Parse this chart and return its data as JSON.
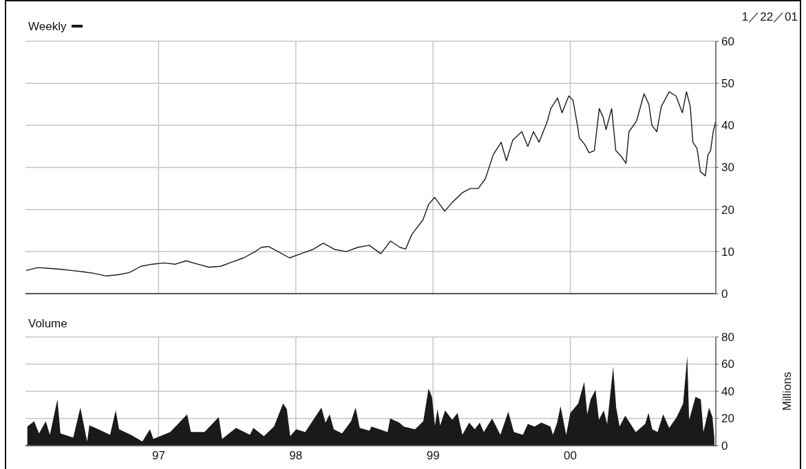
{
  "chart_data": [
    {
      "type": "line",
      "legend": "top left",
      "annotations": [
        "1／22／01"
      ],
      "grid": true,
      "tick_labels": "y",
      "xlim": [
        "1996-01-13",
        "2001-01-22"
      ],
      "xticks": [
        {
          "value": "1997-01-01",
          "label": null
        },
        {
          "value": "1998-01-01",
          "label": null
        },
        {
          "value": "1999-01-01",
          "label": null
        },
        {
          "value": "2000-01-01",
          "label": null
        }
      ],
      "ylim": [
        0,
        60
      ],
      "yticks": [
        0,
        10,
        20,
        30,
        40,
        50,
        60
      ],
      "series": [
        {
          "name": "Weekly",
          "color": "#1a1a1a",
          "x": [
            "1996-01-15",
            "1996-02-15",
            "1996-03-15",
            "1996-04-15",
            "1996-05-15",
            "1996-06-15",
            "1996-07-15",
            "1996-08-15",
            "1996-09-15",
            "1996-10-15",
            "1996-11-15",
            "1996-12-15",
            "1997-01-15",
            "1997-02-15",
            "1997-03-15",
            "1997-04-15",
            "1997-05-15",
            "1997-06-15",
            "1997-07-15",
            "1997-08-15",
            "1997-09-15",
            "1997-10-01",
            "1997-10-20",
            "1997-11-15",
            "1997-12-15",
            "1998-01-15",
            "1998-02-15",
            "1998-03-15",
            "1998-04-15",
            "1998-05-15",
            "1998-06-15",
            "1998-07-15",
            "1998-08-15",
            "1998-09-10",
            "1998-10-05",
            "1998-10-20",
            "1998-11-05",
            "1998-11-20",
            "1998-12-05",
            "1998-12-20",
            "1999-01-05",
            "1999-02-01",
            "1999-02-20",
            "1999-03-20",
            "1999-04-10",
            "1999-05-01",
            "1999-05-20",
            "1999-06-10",
            "1999-07-01",
            "1999-07-15",
            "1999-08-01",
            "1999-08-25",
            "1999-09-10",
            "1999-09-25",
            "1999-10-10",
            "1999-11-01",
            "1999-11-10",
            "1999-11-28",
            "1999-12-10",
            "1999-12-28",
            "2000-01-08",
            "2000-01-20",
            "2000-01-25",
            "2000-02-08",
            "2000-02-20",
            "2000-03-05",
            "2000-03-18",
            "2000-03-28",
            "2000-04-05",
            "2000-04-20",
            "2000-05-01",
            "2000-05-15",
            "2000-05-28",
            "2000-06-05",
            "2000-06-25",
            "2000-07-15",
            "2000-07-28",
            "2000-08-05",
            "2000-08-18",
            "2000-08-30",
            "2000-09-20",
            "2000-10-08",
            "2000-10-25",
            "2000-11-05",
            "2000-11-15",
            "2000-11-22",
            "2000-12-03",
            "2000-12-12",
            "2000-12-25",
            "2001-01-01",
            "2001-01-08",
            "2001-01-15",
            "2001-01-22"
          ],
          "values": [
            5.5,
            6.2,
            6,
            5.8,
            5.5,
            5.2,
            4.8,
            4.2,
            4.5,
            5,
            6.5,
            7,
            7.3,
            7,
            7.8,
            7,
            6.3,
            6.5,
            7.5,
            8.5,
            10,
            11,
            11.2,
            10,
            8.5,
            9.5,
            10.5,
            12,
            10.5,
            10,
            11,
            11.5,
            9.5,
            12.5,
            11,
            10.6,
            14,
            15.8,
            17.5,
            21.2,
            22.9,
            19.6,
            21.6,
            24,
            25,
            25,
            27.3,
            33,
            36,
            31.6,
            36.5,
            38.5,
            35,
            38.5,
            36,
            41,
            44,
            46.5,
            43,
            47,
            46,
            40,
            37,
            35.5,
            33.5,
            34,
            44,
            42,
            39,
            44,
            34,
            32.7,
            31,
            38.5,
            41,
            47.5,
            45,
            40,
            38.5,
            44.5,
            48,
            47,
            43,
            48,
            44.5,
            36,
            34.5,
            29,
            28,
            33,
            34,
            38.5,
            41
          ]
        }
      ]
    },
    {
      "type": "area",
      "title": "Volume",
      "ylabel": "Millions",
      "grid": true,
      "xlim": [
        "1996-01-13",
        "2001-01-22"
      ],
      "xticks": [
        {
          "value": "1997-01-01",
          "label": "97"
        },
        {
          "value": "1998-01-01",
          "label": "98"
        },
        {
          "value": "1999-01-01",
          "label": "99"
        },
        {
          "value": "2000-01-01",
          "label": "00"
        }
      ],
      "ylim": [
        0,
        80
      ],
      "yticks": [
        0,
        20,
        40,
        60,
        80
      ],
      "series": [
        {
          "color": "#1a1a1a",
          "x": [
            "1996-01-18",
            "1996-02-05",
            "1996-02-18",
            "1996-03-07",
            "1996-03-18",
            "1996-04-07",
            "1996-04-15",
            "1996-05-19",
            "1996-06-07",
            "1996-06-25",
            "1996-07-01",
            "1996-07-25",
            "1996-08-25",
            "1996-09-09",
            "1996-09-18",
            "1996-10-19",
            "1996-11-19",
            "1996-12-09",
            "1996-12-18",
            "1997-02-01",
            "1997-02-25",
            "1997-03-18",
            "1997-03-28",
            "1997-05-03",
            "1997-06-10",
            "1997-06-19",
            "1997-07-26",
            "1997-09-01",
            "1997-09-10",
            "1997-10-08",
            "1997-11-04",
            "1997-11-28",
            "1997-12-08",
            "1997-12-17",
            "1998-01-02",
            "1998-01-26",
            "1998-03-10",
            "1998-03-21",
            "1998-04-01",
            "1998-04-12",
            "1998-05-04",
            "1998-05-28",
            "1998-06-09",
            "1998-06-20",
            "1998-07-16",
            "1998-07-21",
            "1998-09-02",
            "1998-09-09",
            "1998-10-03",
            "1998-10-15",
            "1998-11-14",
            "1998-12-06",
            "1998-12-20",
            "1998-12-29",
            "1999-01-06",
            "1999-01-13",
            "1999-01-20",
            "1999-02-02",
            "1999-02-21",
            "1999-03-07",
            "1999-03-20",
            "1999-04-07",
            "1999-04-22",
            "1999-05-05",
            "1999-05-16",
            "1999-06-07",
            "1999-06-29",
            "1999-07-20",
            "1999-08-04",
            "1999-08-28",
            "1999-09-10",
            "1999-09-28",
            "1999-10-16",
            "1999-11-09",
            "1999-11-16",
            "1999-11-27",
            "1999-12-06",
            "1999-12-21",
            "2000-01-01",
            "2000-01-22",
            "2000-02-07",
            "2000-02-15",
            "2000-02-24",
            "2000-03-08",
            "2000-03-17",
            "2000-03-30",
            "2000-04-08",
            "2000-04-24",
            "2000-05-02",
            "2000-05-11",
            "2000-05-26",
            "2000-06-23",
            "2000-07-18",
            "2000-07-27",
            "2000-08-06",
            "2000-08-20",
            "2000-09-04",
            "2000-09-20",
            "2000-10-10",
            "2000-10-27",
            "2000-11-07",
            "2000-11-12",
            "2000-11-29",
            "2000-12-13",
            "2000-12-20",
            "2001-01-04",
            "2001-01-13",
            "2001-01-18"
          ],
          "values": [
            14,
            18,
            9,
            18,
            8,
            34,
            9,
            6,
            28,
            3,
            15,
            12,
            8,
            26,
            12,
            8,
            3,
            12,
            5,
            10,
            17,
            23,
            10,
            10,
            21,
            5,
            13,
            8,
            13,
            7,
            14,
            31,
            27,
            7,
            12,
            10,
            28,
            17,
            23,
            12,
            9,
            18,
            28,
            13,
            11,
            14,
            10,
            20,
            17,
            14,
            12,
            18,
            42,
            36,
            15,
            27,
            15,
            26,
            19,
            24,
            8,
            17,
            12,
            17,
            10,
            20,
            8,
            25,
            10,
            8,
            16,
            14,
            17,
            14,
            8,
            17,
            29,
            8,
            24,
            31,
            47,
            23,
            34,
            41,
            19,
            26,
            16,
            58,
            28,
            14,
            22,
            10,
            16,
            24,
            12,
            10,
            23,
            13,
            21,
            31,
            66,
            19,
            36,
            34,
            10,
            28,
            21,
            6
          ]
        }
      ]
    }
  ]
}
